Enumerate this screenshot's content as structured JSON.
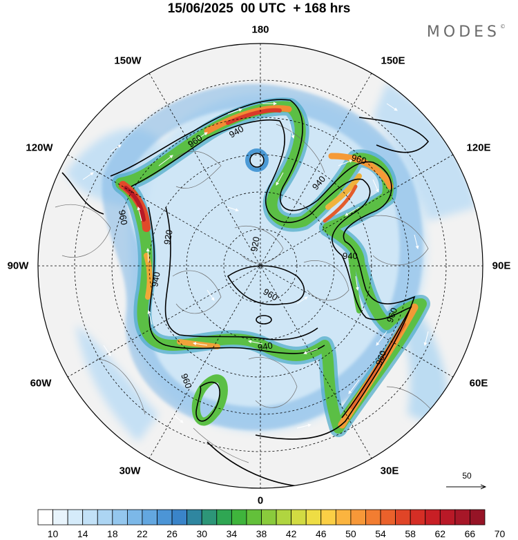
{
  "header": {
    "title": "15/06/2025  00 UTC  + 168 hrs",
    "brand": "MODES",
    "brand_mark": "©"
  },
  "map": {
    "projection": "north-polar-stereographic",
    "longitude_labels": {
      "top": "180",
      "bottom": "0",
      "left": "90W",
      "right": "90E",
      "upper_left": "150W",
      "upper_right": "150E",
      "mid_left_upper": "120W",
      "mid_right_upper": "120E",
      "mid_left_lower": "60W",
      "mid_right_lower": "60E",
      "lower_left": "30W",
      "lower_right": "30E"
    },
    "contour_labels": [
      "960",
      "940",
      "960",
      "940",
      "960",
      "920",
      "920",
      "940",
      "940",
      "960",
      "940",
      "960",
      "960",
      "960",
      "960",
      "940"
    ],
    "vector_reference": {
      "value": "50"
    }
  },
  "colorbar": {
    "labels": [
      "10",
      "14",
      "18",
      "22",
      "26",
      "30",
      "34",
      "38",
      "42",
      "46",
      "50",
      "54",
      "58",
      "62",
      "66",
      "70"
    ],
    "colors": [
      "#ffffff",
      "#e8f4fc",
      "#d5ebfa",
      "#c2e1f7",
      "#acd5f3",
      "#94c7ee",
      "#7cb8e8",
      "#63a7e0",
      "#4c95d6",
      "#3a84c9",
      "#2f86a0",
      "#2d9678",
      "#2fa653",
      "#3fb43c",
      "#63c03a",
      "#8acb3c",
      "#b0d540",
      "#d2db42",
      "#eedd44",
      "#fbcf45",
      "#fbb43f",
      "#f79838",
      "#f27d31",
      "#ea612b",
      "#e04527",
      "#d52e25",
      "#c81f25",
      "#b91927",
      "#a71728",
      "#961426"
    ]
  }
}
